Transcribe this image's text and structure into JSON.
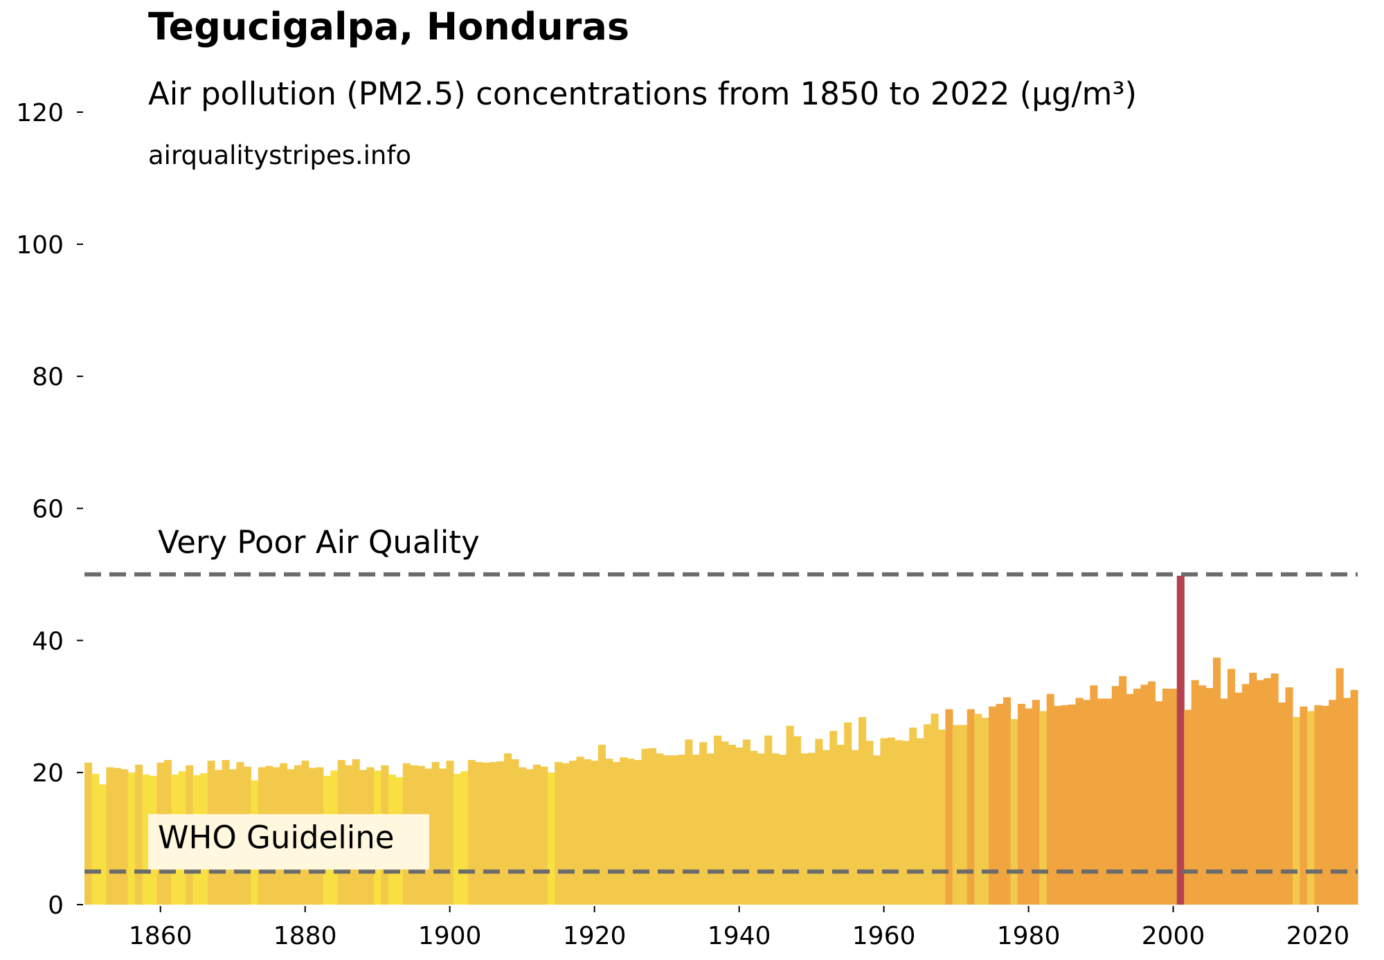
{
  "chart_data": {
    "type": "bar",
    "title": "Tegucigalpa, Honduras",
    "subtitle": "Air pollution (PM2.5) concentrations from 1850 to 2022 (µg/m³)",
    "source": "airqualitystripes.info",
    "xlabel": "",
    "ylabel": "",
    "x_start": 1850,
    "x_end": 2022,
    "xlim": [
      1850,
      2022
    ],
    "ylim": [
      0,
      125
    ],
    "x_ticks": [
      1860,
      1880,
      1900,
      1920,
      1940,
      1960,
      1980,
      2000,
      2020
    ],
    "y_ticks": [
      0,
      20,
      40,
      60,
      80,
      100,
      120
    ],
    "grid": false,
    "values": [
      21.5,
      19.8,
      18.2,
      20.8,
      20.7,
      20.5,
      20.0,
      21.2,
      19.7,
      19.5,
      21.5,
      21.9,
      19.7,
      20.2,
      21.1,
      19.6,
      19.9,
      21.8,
      20.4,
      21.9,
      20.5,
      21.6,
      20.9,
      18.8,
      20.8,
      21.0,
      20.8,
      21.4,
      20.5,
      21.1,
      21.8,
      20.7,
      20.8,
      19.5,
      20.3,
      21.9,
      21.1,
      22.0,
      20.4,
      20.8,
      20.3,
      21.1,
      19.7,
      19.3,
      21.4,
      21.1,
      21.0,
      20.6,
      21.6,
      20.6,
      21.8,
      19.8,
      20.2,
      21.9,
      21.6,
      21.5,
      21.6,
      21.7,
      22.9,
      22.0,
      20.8,
      20.5,
      21.2,
      20.9,
      20.0,
      21.6,
      21.4,
      21.8,
      22.4,
      22.0,
      21.8,
      24.2,
      22.1,
      21.6,
      22.3,
      22.1,
      21.9,
      23.6,
      23.7,
      22.9,
      22.6,
      22.6,
      22.7,
      25.0,
      22.7,
      24.6,
      22.9,
      25.6,
      24.7,
      24.2,
      23.8,
      25.0,
      23.3,
      22.9,
      25.6,
      22.9,
      22.7,
      27.1,
      25.5,
      22.9,
      23.0,
      25.1,
      23.4,
      26.3,
      24.2,
      27.6,
      23.4,
      28.4,
      24.8,
      22.6,
      25.2,
      25.3,
      24.9,
      24.8,
      26.8,
      25.2,
      27.3,
      28.9,
      26.5,
      29.6,
      27.2,
      27.2,
      29.6,
      28.9,
      28.3,
      30.0,
      30.4,
      31.4,
      28.1,
      30.4,
      29.7,
      31.0,
      29.3,
      31.9,
      30.1,
      30.2,
      30.3,
      31.3,
      31.0,
      33.2,
      31.2,
      31.2,
      33.1,
      34.6,
      31.9,
      32.7,
      33.3,
      33.8,
      30.8,
      32.7,
      32.7,
      49.8,
      29.5,
      34.0,
      33.2,
      32.8,
      37.4,
      31.2,
      35.7,
      32.1,
      33.4,
      35.1,
      34.0,
      34.3,
      35.0,
      30.6,
      32.9,
      28.4,
      30.0,
      29.3,
      30.2,
      30.1,
      31.0,
      35.8,
      31.3,
      32.5
    ],
    "reference_lines": [
      {
        "label": "Very Poor Air Quality",
        "value": 50
      },
      {
        "label": "WHO Guideline",
        "value": 5
      }
    ],
    "colors": {
      "low": "#f8e042",
      "moderate": "#f2c94b",
      "high": "#f0a540",
      "extreme": "#b5424f",
      "reference_line": "#6b6b6b",
      "label_box": "#fff8df"
    }
  }
}
